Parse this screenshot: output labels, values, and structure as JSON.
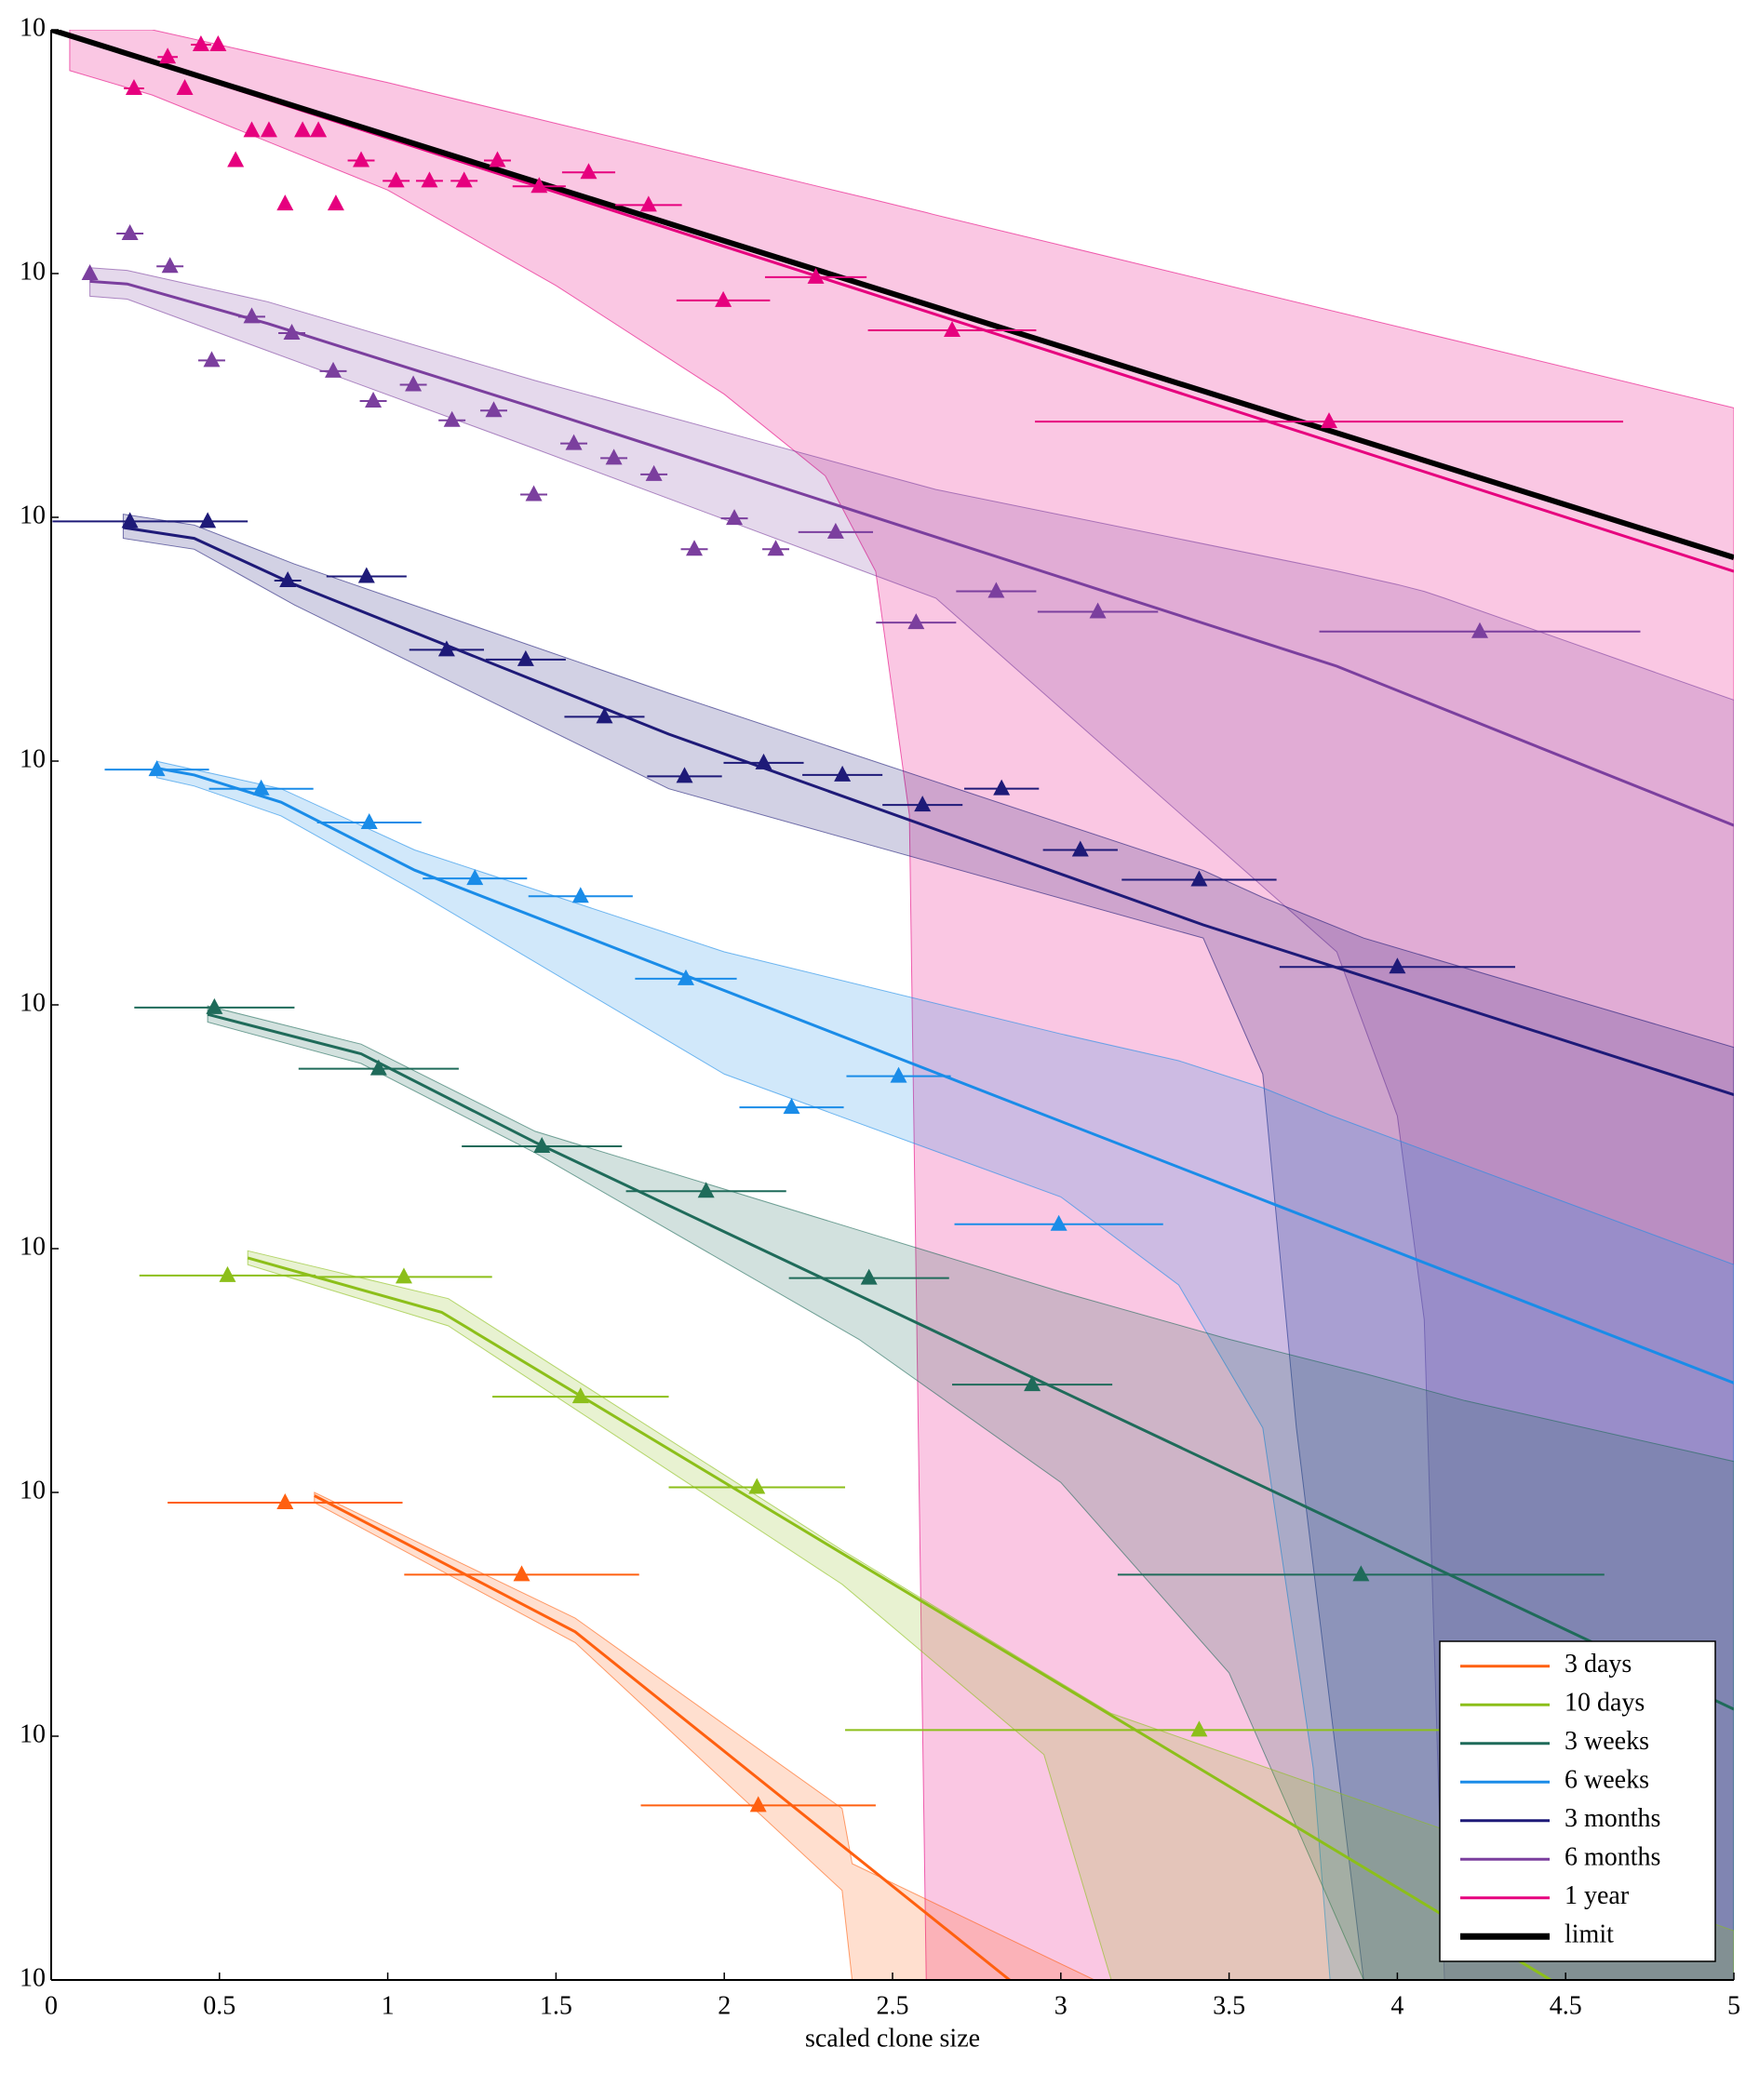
{
  "chart_data": {
    "type": "line",
    "xlabel": "scaled clone size",
    "log_y": true,
    "xlim": [
      0,
      5
    ],
    "xticks": [
      0,
      0.5,
      1,
      1.5,
      2,
      2.5,
      3,
      3.5,
      4,
      4.5,
      5
    ],
    "ylim": [
      1e-08,
      1
    ],
    "yticks": [
      {
        "value": 1,
        "label": "10"
      },
      {
        "value": 0.1,
        "label": "10"
      },
      {
        "value": 0.01,
        "label": "10"
      },
      {
        "value": 0.001,
        "label": "10"
      },
      {
        "value": 0.0001,
        "label": "10"
      },
      {
        "value": 1e-05,
        "label": "10"
      },
      {
        "value": 1e-06,
        "label": "10"
      },
      {
        "value": 1e-07,
        "label": "10"
      },
      {
        "value": 1e-08,
        "label": "10"
      }
    ],
    "legend": "lower right",
    "series": [
      {
        "name": "3 days",
        "color": "#ff6010",
        "x": [
          0.695,
          1.398,
          2.101
        ],
        "values": [
          9.08e-07,
          4.6e-07,
          5.2e-08
        ],
        "xerr": [
          0.349,
          0.349,
          0.349
        ],
        "line_x": [
          0.782,
          1.557,
          2.848
        ],
        "line": [
          9.7e-07,
          2.68e-07,
          1e-08
        ],
        "band_x": [
          0.782,
          1.557,
          2.35,
          2.38,
          3.1
        ],
        "band_lower": [
          9.08e-07,
          2.42e-07,
          2.33e-08,
          1e-08,
          1e-08
        ],
        "band_upper": [
          1e-06,
          3.05e-07,
          5.05e-08,
          3e-08,
          1e-08
        ]
      },
      {
        "name": "10 days",
        "color": "#8cbf1a",
        "x": [
          0.524,
          1.048,
          1.573,
          2.097,
          3.411
        ],
        "values": [
          7.76e-06,
          7.66e-06,
          2.47e-06,
          1.05e-06,
          1.06e-07
        ],
        "xerr": [
          0.262,
          0.262,
          0.262,
          0.262,
          1.052
        ],
        "line_x": [
          0.584,
          1.16,
          4.456
        ],
        "line": [
          9.17e-06,
          5.48e-06,
          1e-08
        ],
        "band_x": [
          0.584,
          1.18,
          2.35,
          2.95,
          3.15,
          5
        ],
        "band_lower": [
          8.6e-06,
          4.82e-06,
          4.2e-07,
          8.4e-08,
          1e-08,
          1e-08
        ],
        "band_upper": [
          9.8e-06,
          6.24e-06,
          5.8e-07,
          1.82e-07,
          1.24e-07,
          1.59e-08
        ]
      },
      {
        "name": "3 weeks",
        "color": "#1f6b5a",
        "x": [
          0.485,
          0.973,
          1.458,
          1.946,
          2.43,
          2.915,
          3.892
        ],
        "values": [
          9.75e-05,
          5.47e-05,
          2.63e-05,
          1.72e-05,
          7.57e-06,
          2.77e-06,
          4.6e-07
        ],
        "xerr": [
          0.238,
          0.238,
          0.238,
          0.238,
          0.238,
          0.238,
          0.723
        ],
        "line_x": [
          0.465,
          0.921,
          1.438,
          5
        ],
        "line": [
          9.14e-05,
          6.3e-05,
          2.73e-05,
          1.29e-07
        ],
        "band_x": [
          0.465,
          0.921,
          1.438,
          2.4,
          3.0,
          3.5,
          3.9,
          4.2,
          5
        ],
        "band_lower": [
          8.5e-05,
          5.75e-05,
          2.47e-05,
          4.25e-06,
          1.1e-06,
          1.82e-07,
          1e-08,
          1e-08,
          1e-08
        ],
        "band_upper": [
          9.9e-05,
          6.9e-05,
          3.03e-05,
          1.19e-05,
          6.65e-06,
          4.25e-06,
          3.08e-06,
          2.38e-06,
          1.34e-06
        ]
      },
      {
        "name": "6 weeks",
        "color": "#1a8ce8",
        "x": [
          0.314,
          0.624,
          0.945,
          1.259,
          1.573,
          1.886,
          2.2,
          2.518,
          2.994
        ],
        "values": [
          0.000923,
          0.00077,
          0.00056,
          0.00033,
          0.000279,
          0.000128,
          3.8e-05,
          5.1e-05,
          1.26e-05
        ],
        "xerr": [
          0.155,
          0.155,
          0.155,
          0.155,
          0.155,
          0.151,
          0.155,
          0.155,
          0.31
        ],
        "line_x": [
          0.314,
          0.425,
          0.683,
          1.08,
          5
        ],
        "line": [
          0.000935,
          0.000877,
          0.000678,
          0.000357,
          2.81e-06
        ],
        "band_x": [
          0.314,
          0.425,
          0.683,
          1.08,
          2.0,
          3.0,
          3.35,
          3.6,
          3.75,
          3.8,
          5
        ],
        "band_lower": [
          0.000855,
          0.00079,
          0.000596,
          0.000294,
          5.2e-05,
          1.63e-05,
          7.1e-06,
          1.84e-06,
          7.4e-08,
          1e-08,
          1e-08
        ],
        "band_upper": [
          0.000997,
          0.000923,
          0.00077,
          0.000432,
          0.000165,
          7.6e-05,
          5.9e-05,
          4.57e-05,
          3.77e-05,
          3.53e-05,
          8.6e-06
        ]
      },
      {
        "name": "3 months",
        "color": "#1e1a78",
        "x": [
          0.234,
          0.465,
          0.703,
          0.937,
          1.175,
          1.41,
          1.644,
          1.882,
          2.117,
          2.351,
          2.589,
          2.824,
          3.058,
          3.411,
          4.0
        ],
        "values": [
          0.00962,
          0.00962,
          0.0055,
          0.00572,
          0.00286,
          0.00261,
          0.00152,
          0.000866,
          0.000984,
          0.000877,
          0.000661,
          0.000771,
          0.000432,
          0.000326,
          0.000143
        ],
        "xerr": [
          0.23,
          0.119,
          0.04,
          0.119,
          0.111,
          0.119,
          0.119,
          0.111,
          0.119,
          0.119,
          0.119,
          0.111,
          0.111,
          0.23,
          0.35
        ],
        "line_x": [
          0.214,
          0.425,
          0.723,
          1.835,
          3.423,
          5
        ],
        "line": [
          0.00908,
          0.0082,
          0.0053,
          0.00129,
          0.000213,
          4.28e-05
        ],
        "band_x": [
          0.214,
          0.425,
          0.723,
          1.835,
          3.423,
          3.6,
          3.7,
          3.9,
          5
        ],
        "band_lower": [
          0.0082,
          0.0074,
          0.00437,
          0.00077,
          0.000188,
          5.2e-05,
          1.84e-06,
          1e-08,
          1e-08
        ],
        "band_upper": [
          0.0103,
          0.0093,
          0.00643,
          0.0019,
          0.000356,
          0.000276,
          0.000243,
          0.000188,
          6.7e-05
        ]
      },
      {
        "name": "6 months",
        "color": "#7b3f9e",
        "x": [
          0.115,
          0.234,
          0.353,
          0.477,
          0.596,
          0.715,
          0.838,
          0.957,
          1.076,
          1.191,
          1.315,
          1.434,
          1.553,
          1.672,
          1.791,
          1.911,
          2.03,
          2.153,
          2.331,
          2.57,
          2.808,
          3.11,
          4.245
        ],
        "values": [
          0.1,
          0.146,
          0.107,
          0.044,
          0.0665,
          0.057,
          0.0398,
          0.03,
          0.035,
          0.025,
          0.0274,
          0.0124,
          0.0201,
          0.0175,
          0.015,
          0.0074,
          0.0099,
          0.0074,
          0.0087,
          0.0037,
          0.00497,
          0.0041,
          0.0034
        ],
        "xerr": [
          0,
          0.04,
          0.04,
          0.04,
          0.04,
          0.04,
          0.04,
          0.04,
          0.04,
          0.04,
          0.04,
          0.04,
          0.04,
          0.04,
          0.04,
          0.04,
          0.04,
          0.04,
          0.111,
          0.119,
          0.119,
          0.179,
          0.477
        ],
        "line_x": [
          0.115,
          0.226,
          0.643,
          1.438,
          2.629,
          3.82,
          5
        ],
        "line": [
          0.0929,
          0.0906,
          0.0624,
          0.0281,
          0.0083,
          0.00245,
          0.000545
        ],
        "band_x": [
          0.115,
          0.226,
          0.643,
          1.438,
          2.629,
          3.82,
          4.0,
          4.08,
          4.14,
          5
        ],
        "band_lower": [
          0.0807,
          0.0785,
          0.0482,
          0.0191,
          0.00466,
          0.000165,
          3.5e-05,
          5.1e-06,
          1e-08,
          1e-08
        ],
        "band_upper": [
          0.1057,
          0.103,
          0.0766,
          0.0364,
          0.013,
          0.00603,
          0.0053,
          0.00497,
          0.00466,
          0.00178
        ]
      },
      {
        "name": "1 year",
        "color": "#e6007e",
        "x": [
          0.246,
          0.346,
          0.397,
          0.445,
          0.496,
          0.548,
          0.596,
          0.647,
          0.695,
          0.747,
          0.794,
          0.846,
          0.921,
          1.025,
          1.124,
          1.227,
          1.326,
          1.45,
          1.597,
          1.775,
          1.997,
          2.272,
          2.677,
          3.797
        ],
        "values": [
          0.575,
          0.773,
          0.575,
          0.869,
          0.869,
          0.291,
          0.386,
          0.386,
          0.193,
          0.386,
          0.386,
          0.193,
          0.291,
          0.24,
          0.24,
          0.24,
          0.291,
          0.228,
          0.26,
          0.191,
          0.0776,
          0.0966,
          0.0585,
          0.0247
        ],
        "xerr": [
          0.03,
          0.03,
          0,
          0.03,
          0,
          0,
          0,
          0,
          0,
          0,
          0,
          0,
          0.04,
          0.04,
          0.04,
          0.04,
          0.04,
          0.079,
          0.079,
          0.099,
          0.139,
          0.151,
          0.25,
          0.874
        ],
        "line_x": [
          0,
          5
        ],
        "line": [
          1,
          0.006
        ],
        "band_x": [
          0.055,
          0.3,
          1,
          1.5,
          2,
          2.3,
          2.45,
          2.55,
          2.6,
          2.62,
          5
        ],
        "band_lower": [
          0.68,
          0.54,
          0.22,
          0.0893,
          0.032,
          0.0148,
          0.006,
          0.0006,
          1e-08,
          1e-08,
          1e-08
        ],
        "band_upper": [
          1,
          1,
          0.607,
          0.413,
          0.282,
          0.224,
          0.2,
          0.185,
          0.178,
          0.175,
          0.0281
        ]
      },
      {
        "name": "limit",
        "color": "#000000",
        "line_x": [
          0,
          5
        ],
        "line": [
          1,
          0.00684
        ]
      }
    ]
  }
}
